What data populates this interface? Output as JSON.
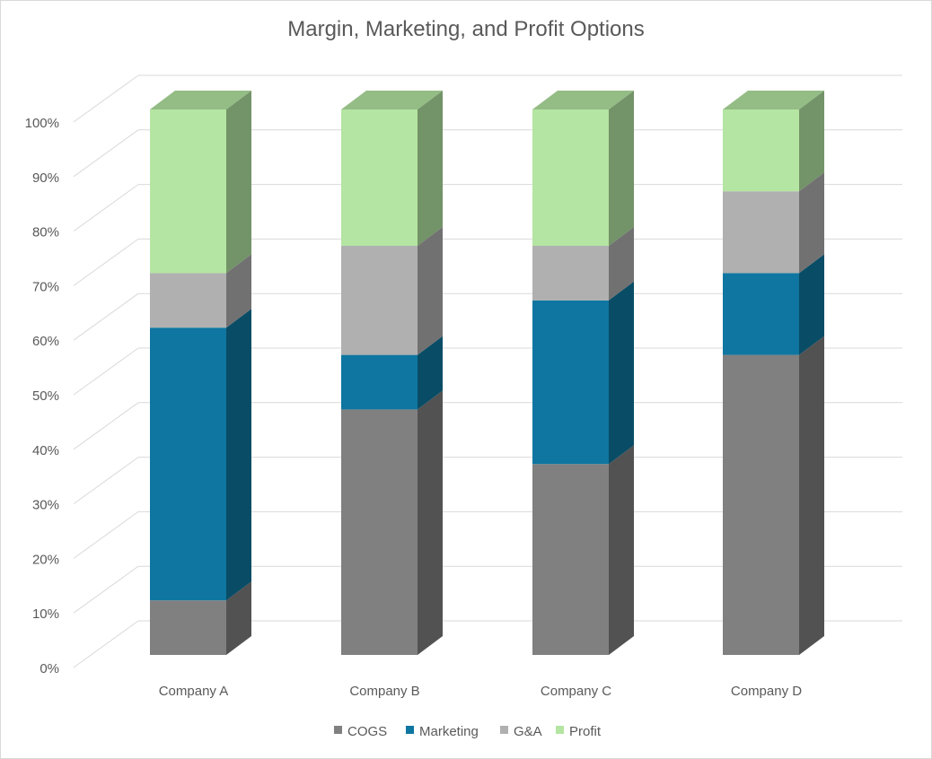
{
  "chart_data": {
    "type": "bar",
    "stacked": true,
    "percent_stacked": true,
    "three_d": true,
    "title": "Margin, Marketing, and Profit Options",
    "categories": [
      "Company A",
      "Company B",
      "Company C",
      "Company D"
    ],
    "series": [
      {
        "name": "COGS",
        "values": [
          10,
          45,
          35,
          55
        ],
        "color": "#808080"
      },
      {
        "name": "Marketing",
        "values": [
          50,
          10,
          30,
          15
        ],
        "color": "#0e76a0"
      },
      {
        "name": "G&A",
        "values": [
          10,
          20,
          10,
          15
        ],
        "color": "#b0b0b0"
      },
      {
        "name": "Profit",
        "values": [
          30,
          25,
          25,
          15
        ],
        "color": "#b4e5a2"
      }
    ],
    "y_ticks": [
      "0%",
      "10%",
      "20%",
      "30%",
      "40%",
      "50%",
      "60%",
      "70%",
      "80%",
      "90%",
      "100%"
    ],
    "ylim": [
      0,
      100
    ],
    "grid": true,
    "legend_position": "bottom"
  }
}
